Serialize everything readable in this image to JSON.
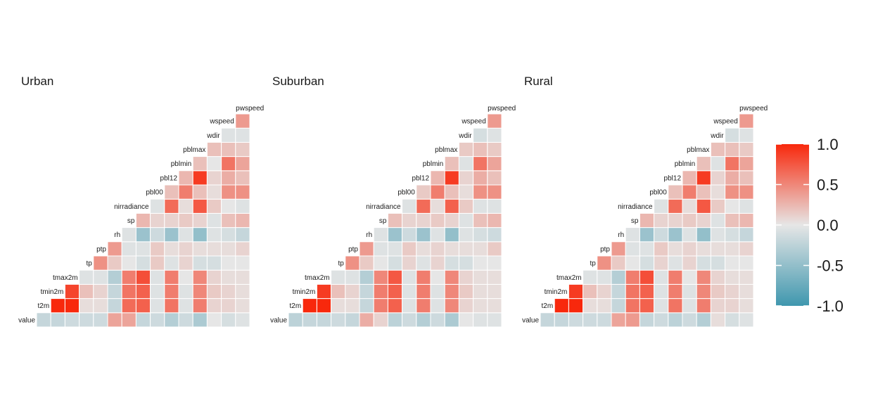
{
  "chart_data": {
    "type": "heatmap",
    "variables": [
      "value",
      "t2m",
      "tmin2m",
      "tmax2m",
      "tp",
      "ptp",
      "rh",
      "sp",
      "nirradiance",
      "pbl00",
      "pbl12",
      "pblmin",
      "pblmax",
      "wdir",
      "wspeed",
      "pwspeed"
    ],
    "value_range": [
      -1,
      1
    ],
    "colors": {
      "low": "#3f97ae",
      "mid": "#e6e6e6",
      "high": "#f8280c"
    },
    "legend": {
      "position": "right",
      "ticks": [
        {
          "value": 1.0,
          "label": "1.0"
        },
        {
          "value": 0.5,
          "label": "0.5"
        },
        {
          "value": 0.0,
          "label": "0.0"
        },
        {
          "value": -0.5,
          "label": "-0.5"
        },
        {
          "value": -1.0,
          "label": "-1.0"
        }
      ]
    },
    "panels": [
      {
        "title": "Urban",
        "rows": [
          [
            -0.2,
            -0.2,
            -0.15,
            -0.15,
            -0.15,
            0.35,
            0.35,
            -0.2,
            -0.15,
            -0.3,
            -0.15,
            -0.35,
            0.0,
            -0.1,
            -0.05
          ],
          [
            1.0,
            1.0,
            0.05,
            0.05,
            -0.2,
            0.65,
            0.7,
            -0.05,
            0.6,
            -0.05,
            0.55,
            0.1,
            0.1,
            0.05
          ],
          [
            0.85,
            0.2,
            0.1,
            -0.2,
            0.6,
            0.7,
            -0.05,
            0.55,
            -0.05,
            0.5,
            0.15,
            0.1,
            0.05
          ],
          [
            -0.05,
            -0.05,
            -0.3,
            0.55,
            0.8,
            -0.05,
            0.55,
            0.0,
            0.5,
            0.1,
            0.05,
            0.05
          ],
          [
            0.45,
            0.15,
            0.0,
            -0.1,
            0.15,
            -0.05,
            0.1,
            -0.1,
            -0.1,
            0.0,
            0.0
          ],
          [
            0.4,
            -0.05,
            -0.05,
            0.15,
            0.05,
            0.1,
            0.05,
            0.05,
            0.05,
            0.1
          ],
          [
            -0.05,
            -0.45,
            -0.15,
            -0.45,
            -0.05,
            -0.5,
            -0.05,
            -0.1,
            -0.2
          ],
          [
            0.25,
            0.1,
            0.1,
            0.15,
            0.1,
            -0.05,
            0.2,
            0.25
          ],
          [
            -0.05,
            0.65,
            0.05,
            0.75,
            0.15,
            0.0,
            -0.05
          ],
          [
            0.2,
            0.55,
            0.2,
            0.05,
            0.45,
            0.45
          ],
          [
            0.25,
            0.9,
            0.1,
            0.3,
            0.2
          ],
          [
            0.2,
            0.0,
            0.6,
            0.35
          ],
          [
            0.2,
            0.2,
            0.15
          ],
          [
            -0.05,
            -0.05
          ],
          [
            0.4
          ]
        ]
      },
      {
        "title": "Suburban",
        "rows": [
          [
            -0.25,
            -0.2,
            -0.2,
            -0.15,
            -0.2,
            0.3,
            0.1,
            -0.25,
            -0.15,
            -0.3,
            -0.15,
            -0.35,
            0.0,
            -0.05,
            -0.05
          ],
          [
            1.0,
            1.0,
            0.05,
            0.05,
            -0.2,
            0.55,
            0.7,
            -0.05,
            0.55,
            -0.05,
            0.5,
            0.1,
            0.05,
            0.05
          ],
          [
            0.9,
            0.2,
            0.1,
            -0.2,
            0.55,
            0.7,
            -0.05,
            0.55,
            -0.05,
            0.5,
            0.15,
            0.05,
            0.05
          ],
          [
            -0.05,
            -0.05,
            -0.3,
            0.5,
            0.75,
            -0.05,
            0.55,
            0.0,
            0.5,
            0.1,
            0.05,
            0.05
          ],
          [
            0.45,
            0.15,
            0.0,
            -0.1,
            0.1,
            -0.05,
            0.1,
            -0.1,
            -0.1,
            0.0,
            0.0
          ],
          [
            0.4,
            -0.05,
            -0.05,
            0.15,
            0.05,
            0.1,
            0.05,
            0.05,
            0.05,
            0.15
          ],
          [
            -0.05,
            -0.45,
            -0.15,
            -0.45,
            -0.05,
            -0.5,
            -0.05,
            -0.1,
            -0.15
          ],
          [
            0.2,
            0.1,
            0.1,
            0.15,
            0.1,
            -0.05,
            0.2,
            0.25
          ],
          [
            -0.05,
            0.65,
            0.05,
            0.7,
            0.15,
            -0.05,
            -0.05
          ],
          [
            0.15,
            0.55,
            0.2,
            0.05,
            0.45,
            0.45
          ],
          [
            0.25,
            0.9,
            0.1,
            0.3,
            0.2
          ],
          [
            0.2,
            -0.05,
            0.6,
            0.35
          ],
          [
            0.15,
            0.2,
            0.15
          ],
          [
            -0.1,
            -0.05
          ],
          [
            0.4
          ]
        ]
      },
      {
        "title": "Rural",
        "rows": [
          [
            -0.2,
            -0.2,
            -0.15,
            -0.15,
            -0.15,
            0.35,
            0.4,
            -0.2,
            -0.15,
            -0.25,
            -0.15,
            -0.3,
            0.05,
            -0.1,
            -0.05
          ],
          [
            1.0,
            1.0,
            0.05,
            0.05,
            -0.2,
            0.6,
            0.7,
            -0.05,
            0.6,
            -0.05,
            0.55,
            0.1,
            0.1,
            0.05
          ],
          [
            0.9,
            0.2,
            0.1,
            -0.2,
            0.6,
            0.7,
            -0.05,
            0.55,
            -0.05,
            0.5,
            0.15,
            0.1,
            0.05
          ],
          [
            -0.05,
            -0.05,
            -0.3,
            0.55,
            0.8,
            -0.05,
            0.55,
            0.0,
            0.5,
            0.1,
            0.05,
            0.05
          ],
          [
            0.45,
            0.15,
            0.0,
            -0.1,
            0.1,
            -0.05,
            0.1,
            -0.1,
            -0.1,
            0.0,
            0.0
          ],
          [
            0.4,
            -0.05,
            -0.05,
            0.15,
            0.05,
            0.1,
            0.05,
            0.05,
            0.05,
            0.1
          ],
          [
            -0.05,
            -0.45,
            -0.15,
            -0.45,
            -0.05,
            -0.5,
            -0.05,
            -0.1,
            -0.2
          ],
          [
            0.25,
            0.1,
            0.1,
            0.15,
            0.1,
            -0.05,
            0.2,
            0.25
          ],
          [
            -0.05,
            0.65,
            0.05,
            0.75,
            0.15,
            0.0,
            -0.05
          ],
          [
            0.2,
            0.55,
            0.2,
            0.05,
            0.45,
            0.45
          ],
          [
            0.25,
            0.9,
            0.1,
            0.3,
            0.2
          ],
          [
            0.2,
            -0.05,
            0.6,
            0.35
          ],
          [
            0.2,
            0.2,
            0.15
          ],
          [
            -0.1,
            -0.05
          ],
          [
            0.4
          ]
        ]
      }
    ]
  }
}
